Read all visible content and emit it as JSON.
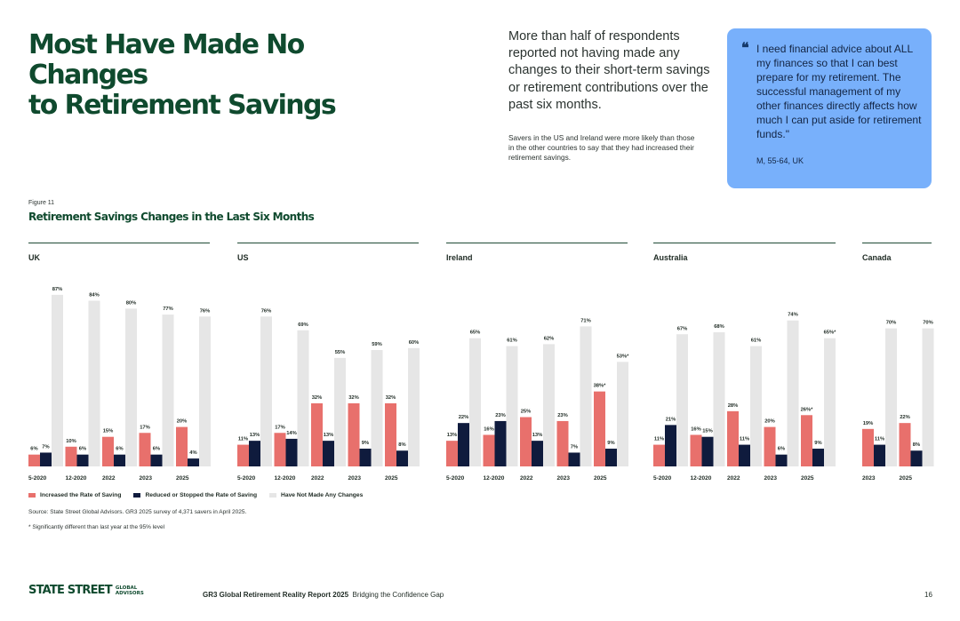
{
  "page": {
    "title_line1": "Most Have Made No Changes",
    "title_line2": "to Retirement Savings",
    "lead": "More than half of respondents reported not having made any changes to their short-term savings or retirement contributions over the past six months.",
    "note": "Savers in the US and Ireland were more likely than those in the other countries to say that they had increased their retirement savings.",
    "quote_mark": "❝",
    "quote": "I need financial advice about ALL my finances so that I can best prepare for my retirement. The successful management of my other finances directly affects how much I can put aside for retirement funds.\"",
    "quote_attribution": "M, 55-64, UK",
    "figure_label": "Figure 11",
    "figure_title": "Retirement Savings Changes in the Last Six Months",
    "source": "Source: State Street Global Advisors. GR3 2025 survey of 4,371 savers in April 2025.",
    "footnote": "* Significantly different than last year at the 95% level"
  },
  "footer": {
    "logo_main": "STATE STREET",
    "logo_sub": "GLOBAL ADVISORS",
    "report": "GR3 Global Retirement Reality Report 2025",
    "subtitle": "Bridging the Confidence Gap",
    "page_number": "16"
  },
  "colors": {
    "increased": "#e8706c",
    "reduced": "#0f1b3d",
    "no_change": "#e6e6e6",
    "text": "#1f2b24",
    "rule": "#1f4a35"
  },
  "chart_data": {
    "type": "bar",
    "title": "Retirement Savings Changes in the Last Six Months",
    "ylim": [
      0,
      90
    ],
    "legend": [
      {
        "key": "increased",
        "label": "Increased the Rate of Saving"
      },
      {
        "key": "reduced",
        "label": "Reduced or Stopped the Rate of Saving"
      },
      {
        "key": "no_change",
        "label": "Have Not Made Any Changes"
      }
    ],
    "panels": [
      {
        "country": "UK",
        "groups": [
          {
            "label": "5-2020",
            "increased": 6,
            "reduced": 7,
            "no_change": 87
          },
          {
            "label": "12-2020",
            "increased": 10,
            "reduced": 6,
            "no_change": 84
          },
          {
            "label": "2022",
            "increased": 15,
            "reduced": 6,
            "no_change": 80
          },
          {
            "label": "2023",
            "increased": 17,
            "reduced": 6,
            "no_change": 77
          },
          {
            "label": "2025",
            "increased": 20,
            "reduced": 4,
            "no_change": 76
          }
        ]
      },
      {
        "country": "US",
        "groups": [
          {
            "label": "5-2020",
            "increased": 11,
            "reduced": 13,
            "no_change": 76
          },
          {
            "label": "12-2020",
            "increased": 17,
            "reduced": 14,
            "no_change": 69
          },
          {
            "label": "2022",
            "increased": 32,
            "reduced": 13,
            "no_change": 55
          },
          {
            "label": "2023",
            "increased": 32,
            "reduced": 9,
            "no_change": 59
          },
          {
            "label": "2025",
            "increased": 32,
            "reduced": 8,
            "no_change": 60
          }
        ]
      },
      {
        "country": "Ireland",
        "groups": [
          {
            "label": "5-2020",
            "increased": 13,
            "reduced": 22,
            "no_change": 65
          },
          {
            "label": "12-2020",
            "increased": 16,
            "reduced": 23,
            "no_change": 61
          },
          {
            "label": "2022",
            "increased": 25,
            "reduced": 13,
            "no_change": 62
          },
          {
            "label": "2023",
            "increased": 23,
            "reduced": 7,
            "no_change": 71
          },
          {
            "label": "2025",
            "increased": 38,
            "increased_label": "38%*",
            "reduced": 9,
            "no_change": 53,
            "no_change_label": "53%*"
          }
        ]
      },
      {
        "country": "Australia",
        "groups": [
          {
            "label": "5-2020",
            "increased": 11,
            "reduced": 21,
            "no_change": 67
          },
          {
            "label": "12-2020",
            "increased": 16,
            "reduced": 15,
            "no_change": 68
          },
          {
            "label": "2022",
            "increased": 28,
            "reduced": 11,
            "no_change": 61
          },
          {
            "label": "2023",
            "increased": 20,
            "reduced": 6,
            "no_change": 74
          },
          {
            "label": "2025",
            "increased": 26,
            "increased_label": "26%*",
            "reduced": 9,
            "no_change": 65,
            "no_change_label": "65%*"
          }
        ]
      },
      {
        "country": "Canada",
        "groups": [
          {
            "label": "2023",
            "increased": 19,
            "reduced": 11,
            "no_change": 70
          },
          {
            "label": "2025",
            "increased": 22,
            "reduced": 8,
            "no_change": 70
          }
        ]
      }
    ]
  }
}
